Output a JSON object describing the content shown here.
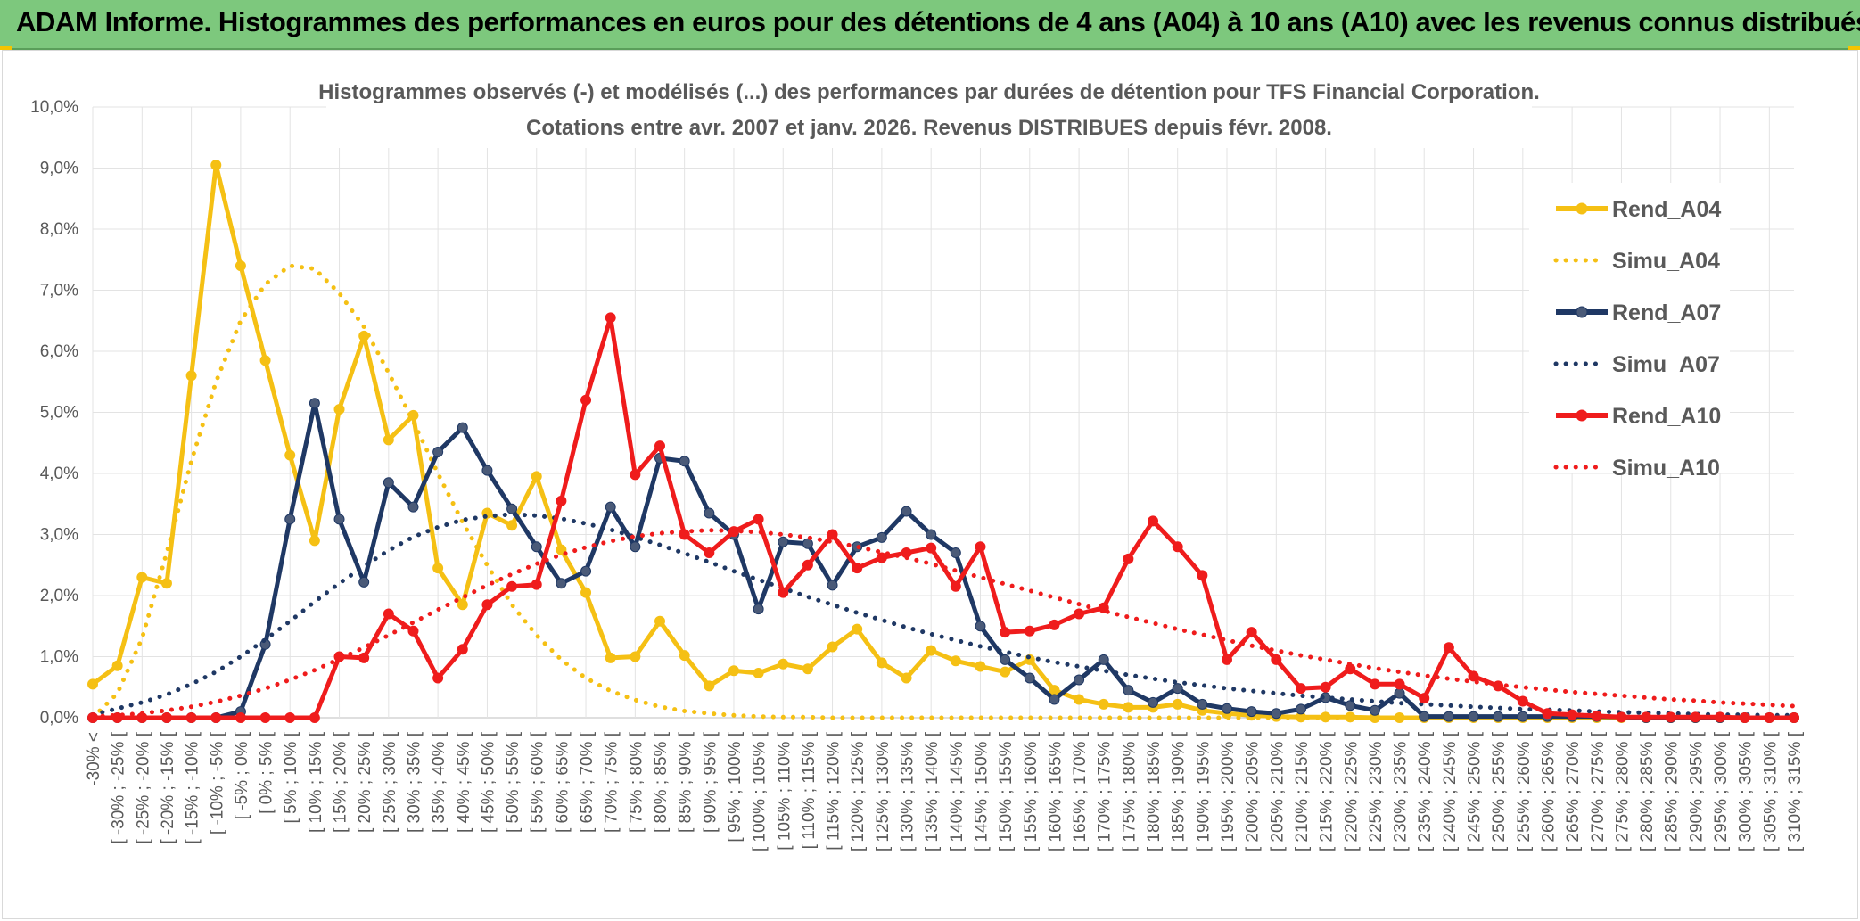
{
  "header": {
    "title": "ADAM Informe. Histogrammes des performances en euros pour des détentions de 4 ans (A04) à 10 ans (A10) avec les revenus connus distribués"
  },
  "chart_data": {
    "type": "line",
    "title": "Histogrammes observés (-) et modélisés (...) des performances par durées de détention pour TFS Financial Corporation.",
    "subtitle": "Cotations entre avr. 2007 et janv. 2026. Revenus DISTRIBUES depuis févr. 2008.",
    "xlabel": "",
    "ylabel": "",
    "ylim": [
      0,
      10
    ],
    "ytick_labels": [
      "0,0%",
      "1,0%",
      "2,0%",
      "3,0%",
      "4,0%",
      "5,0%",
      "6,0%",
      "7,0%",
      "8,0%",
      "9,0%",
      "10,0%"
    ],
    "grid": true,
    "legend_position": "right",
    "categories": [
      "-30% <",
      "[ -30% ; -25% [",
      "[ -25% ; -20% [",
      "[ -20% ; -15% [",
      "[ -15% ; -10% [",
      "[ -10% ; -5% [",
      "[ -5% ; 0% [",
      "[ 0% ; 5% [",
      "[ 5% ; 10% [",
      "[ 10% ; 15% [",
      "[ 15% ; 20% [",
      "[ 20% ; 25% [",
      "[ 25% ; 30% [",
      "[ 30% ; 35% [",
      "[ 35% ; 40% [",
      "[ 40% ; 45% [",
      "[ 45% ; 50% [",
      "[ 50% ; 55% [",
      "[ 55% ; 60% [",
      "[ 60% ; 65% [",
      "[ 65% ; 70% [",
      "[ 70% ; 75% [",
      "[ 75% ; 80% [",
      "[ 80% ; 85% [",
      "[ 85% ; 90% [",
      "[ 90% ; 95% [",
      "[ 95% ; 100% [",
      "[ 100% ; 105% [",
      "[ 105% ; 110% [",
      "[ 110% ; 115% [",
      "[ 115% ; 120% [",
      "[ 120% ; 125% [",
      "[ 125% ; 130% [",
      "[ 130% ; 135% [",
      "[ 135% ; 140% [",
      "[ 140% ; 145% [",
      "[ 145% ; 150% [",
      "[ 150% ; 155% [",
      "[ 155% ; 160% [",
      "[ 160% ; 165% [",
      "[ 165% ; 170% [",
      "[ 170% ; 175% [",
      "[ 175% ; 180% [",
      "[ 180% ; 185% [",
      "[ 185% ; 190% [",
      "[ 190% ; 195% [",
      "[ 195% ; 200% [",
      "[ 200% ; 205% [",
      "[ 205% ; 210% [",
      "[ 210% ; 215% [",
      "[ 215% ; 220% [",
      "[ 220% ; 225% [",
      "[ 225% ; 230% [",
      "[ 230% ; 235% [",
      "[ 235% ; 240% [",
      "[ 240% ; 245% [",
      "[ 245% ; 250% [",
      "[ 250% ; 255% [",
      "[ 255% ; 260% [",
      "[ 260% ; 265% [",
      "[ 265% ; 270% [",
      "[ 270% ; 275% [",
      "[ 275% ; 280% [",
      "[ 280% ; 285% [",
      "[ 285% ; 290% [",
      "[ 290% ; 295% [",
      "[ 295% ; 300% [",
      "[ 300% ; 305% [",
      "[ 305% ; 310% [",
      "[ 310% ; 315% ["
    ],
    "series": [
      {
        "name": "Rend_A04",
        "color": "#f5c014",
        "style": "solid",
        "values": [
          0.55,
          0.85,
          2.3,
          2.2,
          5.6,
          9.05,
          7.4,
          5.85,
          4.3,
          2.9,
          5.05,
          6.25,
          4.55,
          4.95,
          2.45,
          1.85,
          3.35,
          3.15,
          3.95,
          2.75,
          2.05,
          0.98,
          1.0,
          1.58,
          1.02,
          0.52,
          0.77,
          0.73,
          0.88,
          0.8,
          1.16,
          1.45,
          0.9,
          0.65,
          1.1,
          0.93,
          0.84,
          0.75,
          0.95,
          0.45,
          0.3,
          0.22,
          0.17,
          0.17,
          0.22,
          0.12,
          0.07,
          0.04,
          0.02,
          0.01,
          0.01,
          0.01,
          0,
          0,
          0,
          0,
          0,
          0,
          0,
          0,
          0,
          0,
          0,
          0,
          0,
          0,
          0,
          0,
          0,
          0
        ]
      },
      {
        "name": "Simu_A04",
        "color": "#f5c014",
        "style": "dotted",
        "values": [
          0.0,
          0.4,
          1.3,
          2.7,
          4.2,
          5.5,
          6.5,
          7.1,
          7.4,
          7.35,
          6.95,
          6.4,
          5.65,
          4.85,
          4.0,
          3.2,
          2.5,
          1.85,
          1.35,
          0.95,
          0.65,
          0.44,
          0.29,
          0.18,
          0.11,
          0.07,
          0.04,
          0.02,
          0.01,
          0.01,
          0,
          0,
          0,
          0,
          0,
          0,
          0,
          0,
          0,
          0,
          0,
          0,
          0,
          0,
          0,
          0,
          0,
          0,
          0,
          0,
          0,
          0,
          0,
          0,
          0,
          0,
          0,
          0,
          0,
          0,
          0,
          0,
          0,
          0,
          0,
          0,
          0,
          0,
          0,
          0
        ]
      },
      {
        "name": "Rend_A07",
        "color": "#1f3864",
        "style": "solid",
        "values": [
          0,
          0,
          0,
          0,
          0,
          0,
          0.1,
          1.2,
          3.25,
          5.15,
          3.25,
          2.22,
          3.85,
          3.45,
          4.35,
          4.75,
          4.05,
          3.42,
          2.8,
          2.2,
          2.4,
          3.45,
          2.8,
          4.25,
          4.2,
          3.35,
          3.0,
          1.78,
          2.88,
          2.85,
          2.17,
          2.8,
          2.95,
          3.38,
          3.0,
          2.7,
          1.5,
          0.95,
          0.65,
          0.3,
          0.62,
          0.95,
          0.45,
          0.25,
          0.48,
          0.22,
          0.15,
          0.1,
          0.07,
          0.14,
          0.33,
          0.2,
          0.12,
          0.4,
          0.02,
          0.02,
          0.02,
          0.02,
          0.02,
          0.02,
          0.02,
          0.02,
          0.01,
          0,
          0,
          0,
          0,
          0,
          0,
          0
        ]
      },
      {
        "name": "Simu_A07",
        "color": "#1f3864",
        "style": "dotted",
        "values": [
          0.05,
          0.15,
          0.25,
          0.38,
          0.55,
          0.75,
          1.0,
          1.28,
          1.58,
          1.9,
          2.2,
          2.48,
          2.74,
          2.96,
          3.12,
          3.24,
          3.3,
          3.33,
          3.31,
          3.26,
          3.18,
          3.08,
          2.96,
          2.83,
          2.69,
          2.55,
          2.4,
          2.26,
          2.12,
          1.98,
          1.85,
          1.72,
          1.6,
          1.48,
          1.37,
          1.27,
          1.17,
          1.08,
          0.99,
          0.91,
          0.84,
          0.77,
          0.7,
          0.64,
          0.58,
          0.53,
          0.48,
          0.44,
          0.4,
          0.36,
          0.33,
          0.3,
          0.27,
          0.24,
          0.22,
          0.2,
          0.18,
          0.16,
          0.14,
          0.13,
          0.12,
          0.1,
          0.09,
          0.08,
          0.07,
          0.06,
          0.05,
          0.05,
          0.04,
          0.04
        ]
      },
      {
        "name": "Rend_A10",
        "color": "#ef1c1c",
        "style": "solid",
        "values": [
          0,
          0,
          0,
          0,
          0,
          0,
          0,
          0,
          0,
          0,
          1.0,
          0.98,
          1.7,
          1.42,
          0.65,
          1.12,
          1.85,
          2.15,
          2.18,
          3.55,
          5.2,
          6.55,
          3.98,
          4.45,
          3.0,
          2.7,
          3.05,
          3.25,
          2.05,
          2.5,
          3.0,
          2.45,
          2.62,
          2.7,
          2.78,
          2.15,
          2.8,
          1.4,
          1.42,
          1.52,
          1.7,
          1.8,
          2.6,
          3.22,
          2.8,
          2.33,
          0.95,
          1.4,
          0.95,
          0.48,
          0.5,
          0.8,
          0.55,
          0.55,
          0.32,
          1.15,
          0.68,
          0.52,
          0.27,
          0.07,
          0.05,
          0.03,
          0.01,
          0.01,
          0.01,
          0.01,
          0.01,
          0,
          0,
          0
        ]
      },
      {
        "name": "Simu_A10",
        "color": "#ef1c1c",
        "style": "dotted",
        "values": [
          0.02,
          0.04,
          0.07,
          0.12,
          0.18,
          0.26,
          0.36,
          0.48,
          0.62,
          0.78,
          0.96,
          1.15,
          1.35,
          1.56,
          1.77,
          1.97,
          2.17,
          2.35,
          2.52,
          2.67,
          2.79,
          2.89,
          2.97,
          3.02,
          3.05,
          3.07,
          3.06,
          3.04,
          3.0,
          2.95,
          2.88,
          2.8,
          2.71,
          2.62,
          2.52,
          2.41,
          2.3,
          2.19,
          2.08,
          1.97,
          1.86,
          1.75,
          1.65,
          1.55,
          1.45,
          1.36,
          1.27,
          1.18,
          1.1,
          1.02,
          0.95,
          0.88,
          0.81,
          0.75,
          0.69,
          0.64,
          0.59,
          0.54,
          0.5,
          0.46,
          0.42,
          0.39,
          0.36,
          0.33,
          0.3,
          0.28,
          0.25,
          0.23,
          0.21,
          0.19
        ]
      }
    ]
  }
}
